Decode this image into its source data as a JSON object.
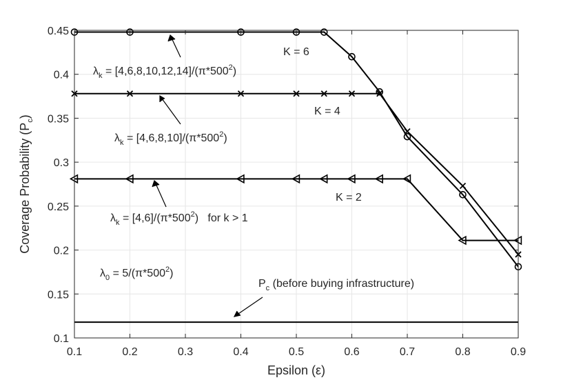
{
  "chart_data": {
    "type": "line",
    "xlabel": "Epsilon (ε)",
    "ylabel": "Coverage Probability (P_c)",
    "xlim": [
      0.1,
      0.9
    ],
    "ylim": [
      0.1,
      0.45
    ],
    "xticks": [
      "0.1",
      "0.2",
      "0.3",
      "0.4",
      "0.5",
      "0.6",
      "0.7",
      "0.8",
      "0.9"
    ],
    "yticks": [
      "0.1",
      "0.15",
      "0.2",
      "0.25",
      "0.3",
      "0.35",
      "0.4",
      "0.45"
    ],
    "grid": true,
    "series": [
      {
        "name": "K = 6",
        "marker": "circle",
        "x": [
          0.1,
          0.2,
          0.4,
          0.5,
          0.55,
          0.6,
          0.65,
          0.7,
          0.8,
          0.9
        ],
        "y": [
          0.448,
          0.448,
          0.448,
          0.448,
          0.448,
          0.42,
          0.38,
          0.329,
          0.263,
          0.181
        ]
      },
      {
        "name": "K = 4",
        "marker": "x",
        "x": [
          0.1,
          0.2,
          0.4,
          0.5,
          0.55,
          0.6,
          0.65,
          0.7,
          0.8,
          0.9
        ],
        "y": [
          0.378,
          0.378,
          0.378,
          0.378,
          0.378,
          0.378,
          0.378,
          0.335,
          0.273,
          0.195
        ]
      },
      {
        "name": "K = 2",
        "marker": "triangle-left",
        "x": [
          0.1,
          0.2,
          0.4,
          0.5,
          0.55,
          0.6,
          0.65,
          0.7,
          0.8,
          0.9
        ],
        "y": [
          0.281,
          0.281,
          0.281,
          0.281,
          0.281,
          0.281,
          0.281,
          0.281,
          0.211,
          0.211
        ]
      },
      {
        "name": "P_c (before buying infrastructure)",
        "marker": "none",
        "x": [
          0.1,
          0.9
        ],
        "y": [
          0.118,
          0.118
        ]
      }
    ],
    "annotations": {
      "k6_label": "K = 6",
      "k4_label": "K = 4",
      "k2_label": "K = 2",
      "lambda_k6": {
        "pre": "λ",
        "sub": "k",
        "mid": " = [4,6,8,10,12,14]/(π*500",
        "sup": "2",
        "post": ")"
      },
      "lambda_k4": {
        "pre": "λ",
        "sub": "k",
        "mid": " = [4,6,8,10]/(π*500",
        "sup": "2",
        "post": ")"
      },
      "lambda_k2": {
        "pre": "λ",
        "sub": "k",
        "mid": " = [4,6]/(π*500",
        "sup": "2",
        "post": ")   for k > 1"
      },
      "lambda_0": {
        "pre": "λ",
        "sub": "0",
        "mid": " = 5/(π*500",
        "sup": "2",
        "post": ")"
      },
      "baseline": {
        "pre": "P",
        "sub": "c",
        "post": " (before buying infrastructure)"
      }
    },
    "colors": {
      "line": "#000000",
      "grid": "#e6e6e6",
      "axis": "#262626"
    }
  }
}
